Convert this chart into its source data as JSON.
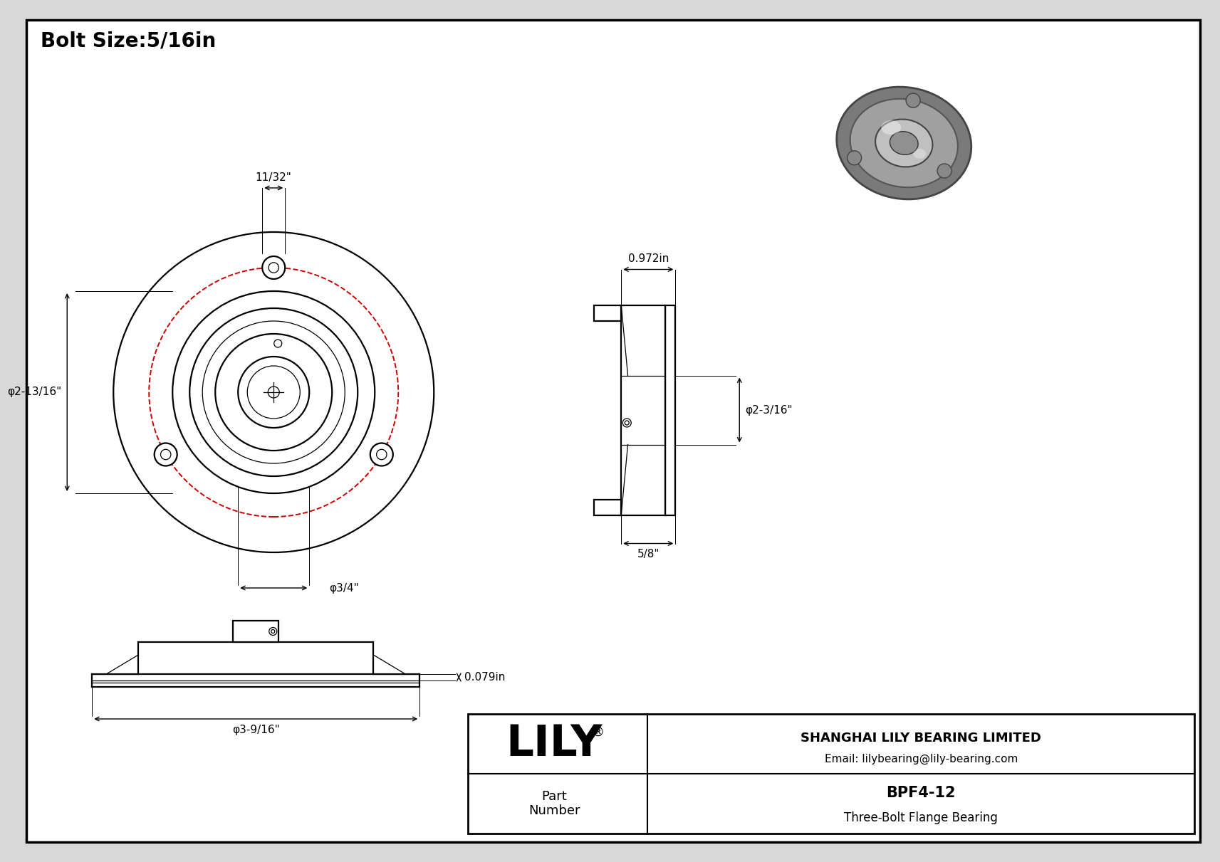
{
  "title": "Bolt Size:5/16in",
  "bg_color": "#d8d8d8",
  "drawing_bg": "#ffffff",
  "line_color": "#000000",
  "red_color": "#cc0000",
  "dims": {
    "bolt_hole": "11/32\"",
    "flange_dia": "φ2-13/16\"",
    "bore_dia": "φ3/4\"",
    "side_width": "0.972in",
    "side_bore": "φ2-3/16\"",
    "side_base": "5/8\"",
    "groove": "0.079in",
    "bottom_dia": "φ3-9/16\""
  },
  "company": "SHANGHAI LILY BEARING LIMITED",
  "email": "Email: lilybearing@lily-bearing.com",
  "part_number": "BPF4-12",
  "part_desc": "Three-Bolt Flange Bearing",
  "part_label": "Part\nNumber",
  "lily": "LILY",
  "reg": "®"
}
